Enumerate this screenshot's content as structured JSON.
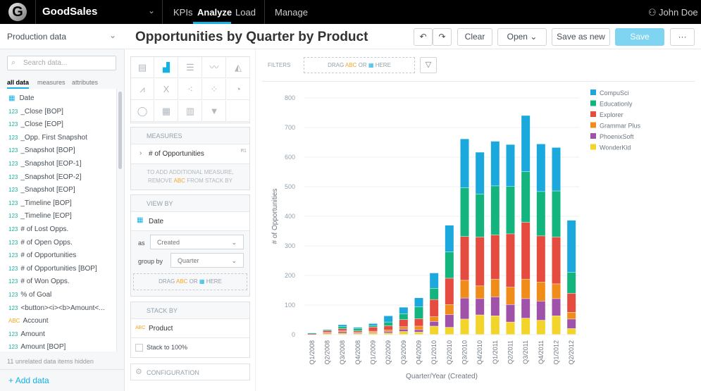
{
  "topbar": {
    "logo": "G",
    "app": "GoodSales",
    "nav": [
      "KPIs",
      "Analyze",
      "Load"
    ],
    "manage": "Manage",
    "user": "John Doe"
  },
  "sidebar": {
    "project": "Production data",
    "search_placeholder": "Search data...",
    "tabs": [
      "all data",
      "measures",
      "attributes"
    ],
    "items": [
      {
        "type": "date",
        "label": "Date"
      },
      {
        "type": "123",
        "label": "_Close [BOP]"
      },
      {
        "type": "123",
        "label": "_Close [EOP]"
      },
      {
        "type": "123",
        "label": "_Opp. First Snapshot"
      },
      {
        "type": "123",
        "label": "_Snapshot [BOP]"
      },
      {
        "type": "123",
        "label": "_Snapshot [EOP-1]"
      },
      {
        "type": "123",
        "label": "_Snapshot [EOP-2]"
      },
      {
        "type": "123",
        "label": "_Snapshot [EOP]"
      },
      {
        "type": "123",
        "label": "_Timeline [BOP]"
      },
      {
        "type": "123",
        "label": "_Timeline [EOP]"
      },
      {
        "type": "123",
        "label": "# of Lost Opps."
      },
      {
        "type": "123",
        "label": "# of Open Opps."
      },
      {
        "type": "123",
        "label": "# of Opportunities"
      },
      {
        "type": "123",
        "label": "# of Opportunities [BOP]"
      },
      {
        "type": "123",
        "label": "# of Won Opps."
      },
      {
        "type": "123",
        "label": "% of Goal"
      },
      {
        "type": "123",
        "label": "<button><i><b>Amount<..."
      },
      {
        "type": "ABC",
        "label": "Account"
      },
      {
        "type": "123",
        "label": "Amount"
      },
      {
        "type": "123",
        "label": "Amount [BOP]"
      }
    ],
    "hidden_note": "11 unrelated data items hidden",
    "add_data": "Add data"
  },
  "header": {
    "title": "Opportunities by Quarter by Product",
    "clear": "Clear",
    "open": "Open",
    "save_as_new": "Save as new",
    "save": "Save",
    "more": "···"
  },
  "config": {
    "measures_title": "MEASURES",
    "measure": "# of Opportunities",
    "measure_id": "M1",
    "measure_hint1": "TO ADD ADDITIONAL MEASURE,",
    "measure_hint2a": "REMOVE",
    "abc": "ABC",
    "measure_hint2b": "FROM STACK BY",
    "view_by_title": "VIEW BY",
    "view_by": "Date",
    "as_label": "as",
    "as_value": "Created",
    "group_label": "group by",
    "group_value": "Quarter",
    "drag": "DRAG",
    "or": "OR",
    "here": "HERE",
    "stack_by_title": "STACK BY",
    "stack_by": "Product",
    "stack100": "Stack to 100%",
    "configuration": "CONFIGURATION"
  },
  "filters": {
    "label": "FILTERS",
    "drag": "DRAG",
    "abc": "ABC",
    "or": "OR",
    "here": "HERE"
  },
  "chart_data": {
    "type": "bar",
    "stacked": true,
    "xlabel": "Quarter/Year (Created)",
    "ylabel": "# of Opportunities",
    "ylim": [
      0,
      800
    ],
    "yticks": [
      0,
      100,
      200,
      300,
      400,
      500,
      600,
      700,
      800
    ],
    "grid": true,
    "legend": "right",
    "categories": [
      "Q1/2008",
      "Q2/2008",
      "Q3/2008",
      "Q4/2008",
      "Q1/2009",
      "Q2/2009",
      "Q3/2009",
      "Q4/2009",
      "Q1/2010",
      "Q2/2010",
      "Q3/2010",
      "Q4/2010",
      "Q1/2011",
      "Q2/2011",
      "Q3/2011",
      "Q4/2011",
      "Q1/2012",
      "Q2/2012"
    ],
    "series": [
      {
        "name": "WonderKid",
        "color": "#f2d42b",
        "values": [
          1,
          3,
          4,
          3,
          5,
          5,
          10,
          8,
          28,
          24,
          52,
          66,
          63,
          42,
          55,
          48,
          63,
          20
        ]
      },
      {
        "name": "PhoenixSoft",
        "color": "#a051a9",
        "values": [
          1,
          2,
          5,
          3,
          3,
          5,
          8,
          8,
          16,
          43,
          71,
          55,
          64,
          59,
          66,
          65,
          58,
          32
        ]
      },
      {
        "name": "Grammar Plus",
        "color": "#f08c1a",
        "values": [
          0,
          2,
          3,
          2,
          3,
          5,
          8,
          12,
          16,
          34,
          60,
          43,
          60,
          59,
          66,
          64,
          50,
          23
        ]
      },
      {
        "name": "Explorer",
        "color": "#e54b3f",
        "values": [
          1,
          6,
          7,
          4,
          14,
          14,
          24,
          25,
          58,
          89,
          148,
          165,
          149,
          180,
          192,
          156,
          158,
          64
        ]
      },
      {
        "name": "Educationly",
        "color": "#14b47e",
        "values": [
          1,
          2,
          7,
          8,
          5,
          13,
          20,
          40,
          38,
          89,
          165,
          146,
          166,
          160,
          171,
          150,
          156,
          71
        ]
      },
      {
        "name": "CompuSci",
        "color": "#1ba8dd",
        "values": [
          1,
          2,
          7,
          4,
          7,
          21,
          22,
          31,
          52,
          90,
          165,
          141,
          151,
          142,
          190,
          161,
          147,
          176
        ]
      }
    ]
  }
}
